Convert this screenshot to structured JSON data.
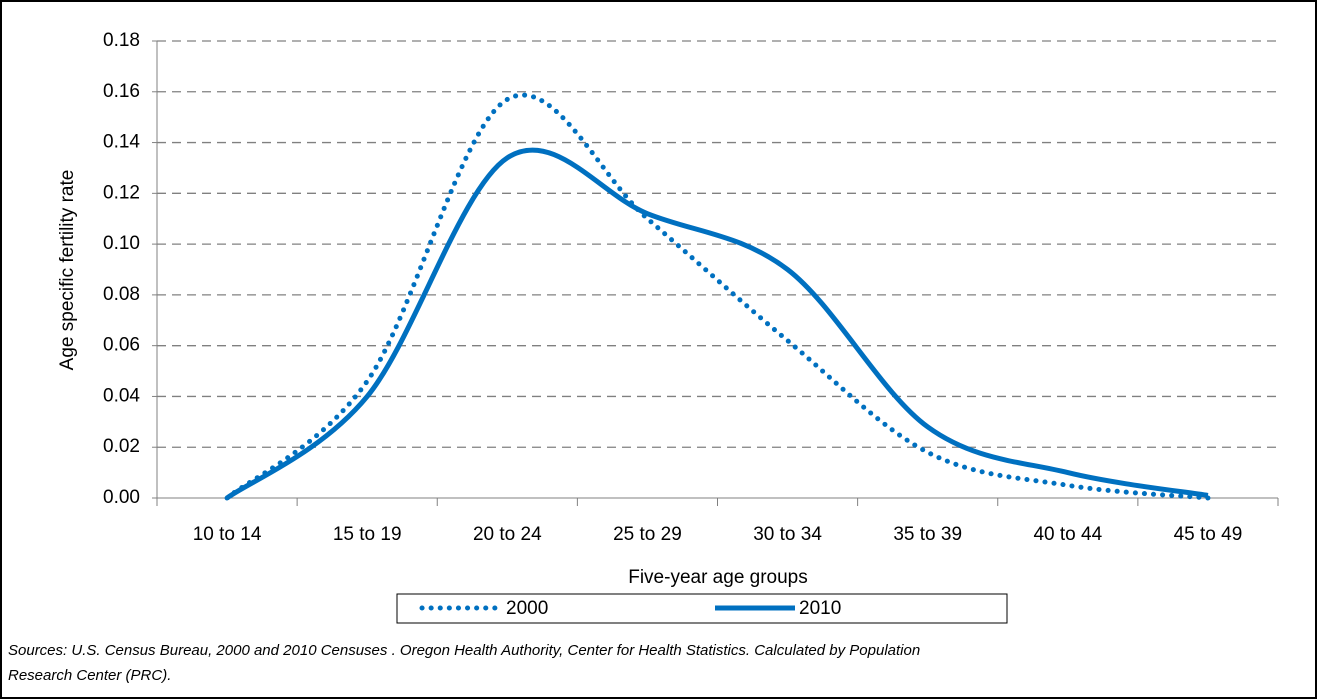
{
  "chart_data": {
    "type": "line",
    "y_label": "Age specific fertility rate",
    "x_label": "Five-year age groups",
    "categories": [
      "10 to 14",
      "15 to 19",
      "20 to 24",
      "25 to 29",
      "30 to 34",
      "35 to 39",
      "40 to 44",
      "45 to 49"
    ],
    "series": [
      {
        "name": "2000",
        "color": "#0070c0",
        "dash": "dotted",
        "values": [
          0.0,
          0.046,
          0.157,
          0.11,
          0.062,
          0.018,
          0.005,
          0.0
        ]
      },
      {
        "name": "2010",
        "color": "#0070c0",
        "dash": "solid",
        "values": [
          0.0,
          0.04,
          0.134,
          0.112,
          0.09,
          0.028,
          0.01,
          0.001
        ]
      }
    ],
    "ylim": [
      0,
      0.18
    ],
    "yticks": [
      {
        "value": 0,
        "label": "0.00"
      },
      {
        "value": 0.02,
        "label": "0.02"
      },
      {
        "value": 0.04,
        "label": "0.04"
      },
      {
        "value": 0.06,
        "label": "0.06"
      },
      {
        "value": 0.08,
        "label": "0.08"
      },
      {
        "value": 0.1,
        "label": "0.10"
      },
      {
        "value": 0.12,
        "label": "0.12"
      },
      {
        "value": 0.14,
        "label": "0.14"
      },
      {
        "value": 0.16,
        "label": "0.16"
      },
      {
        "value": 0.18,
        "label": "0.18"
      }
    ],
    "grid": true,
    "legend": "bottom",
    "source": [
      "Sources: U.S. Census Bureau, 2000 and 2010 Censuses . Oregon Health Authority, Center for Health Statistics. Calculated by Population",
      "Research Center (PRC)."
    ]
  }
}
